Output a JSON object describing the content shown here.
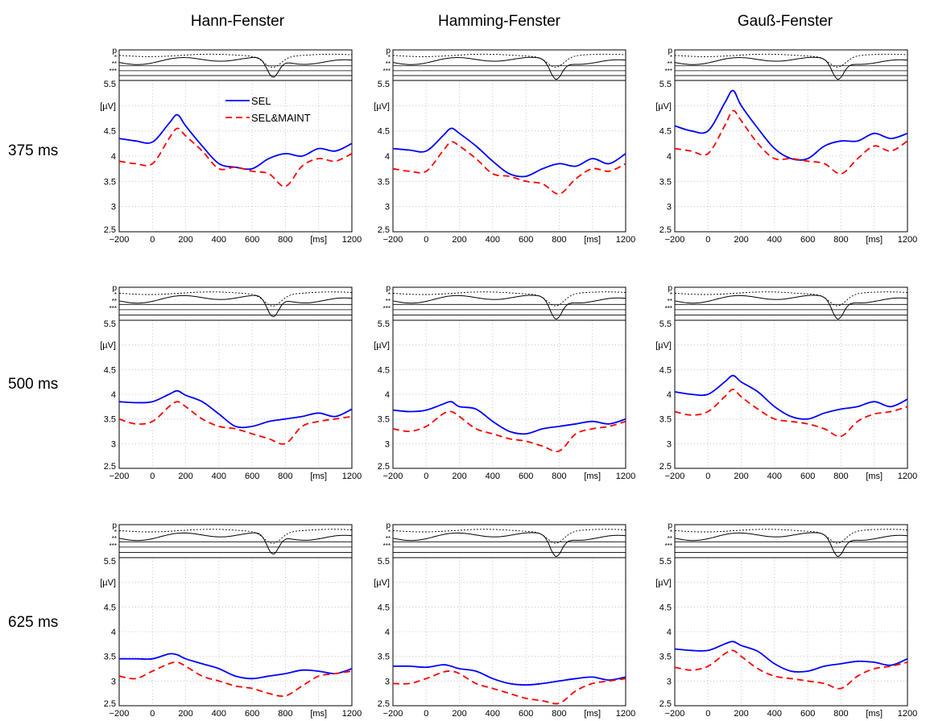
{
  "columns": [
    "Hann-Fenster",
    "Hamming-Fenster",
    "Gauß-Fenster"
  ],
  "rows": [
    "375 ms",
    "500 ms",
    "625 ms"
  ],
  "pval_labels": [
    "p",
    "*",
    "**",
    "***"
  ],
  "y_unit": "[µV]",
  "x_unit": "[ms]",
  "x_ticks": [
    "−200",
    "0",
    "200",
    "400",
    "600",
    "800",
    "1200"
  ],
  "x_tick_values": [
    -200,
    0,
    200,
    400,
    600,
    800,
    1200
  ],
  "y_ticks": [
    "2.5",
    "3",
    "3.5",
    "4",
    "4.5",
    "5",
    "5.5"
  ],
  "y_tick_values": [
    2.5,
    3,
    3.5,
    4,
    4.5,
    5,
    5.5
  ],
  "legend": [
    "SEL",
    "SEL&MAINT"
  ],
  "colors": {
    "sel": "#0000ff",
    "maint": "#ff0000",
    "axis": "#000000",
    "grid": "#bbbbbb"
  },
  "chart_data": [
    {
      "type": "line",
      "title": "Hann-Fenster",
      "row": "375 ms",
      "xlim": [
        -200,
        1200
      ],
      "ylim": [
        2.5,
        5.5
      ],
      "ylabel": "[µV]",
      "xlabel": "[ms]",
      "grid": true,
      "legend_position": "top",
      "x": [
        -200,
        -100,
        0,
        100,
        150,
        200,
        300,
        400,
        500,
        600,
        700,
        800,
        900,
        1000,
        1100,
        1200
      ],
      "series": [
        {
          "name": "SEL",
          "values": [
            4.35,
            4.3,
            4.28,
            4.65,
            4.82,
            4.6,
            4.2,
            3.85,
            3.78,
            3.75,
            3.95,
            4.05,
            4.0,
            4.15,
            4.1,
            4.25
          ]
        },
        {
          "name": "SEL&MAINT",
          "values": [
            3.9,
            3.85,
            3.85,
            4.35,
            4.55,
            4.4,
            4.1,
            3.75,
            3.78,
            3.7,
            3.65,
            3.4,
            3.8,
            3.95,
            3.9,
            4.05
          ]
        }
      ]
    },
    {
      "type": "line",
      "title": "Hamming-Fenster",
      "row": "375 ms",
      "xlim": [
        -200,
        1200
      ],
      "ylim": [
        2.5,
        5.5
      ],
      "ylabel": "[µV]",
      "xlabel": "[ms]",
      "grid": true,
      "x": [
        -200,
        -100,
        0,
        100,
        150,
        200,
        300,
        400,
        500,
        600,
        700,
        800,
        900,
        1000,
        1100,
        1200
      ],
      "series": [
        {
          "values": [
            4.15,
            4.12,
            4.1,
            4.4,
            4.55,
            4.45,
            4.2,
            3.9,
            3.65,
            3.6,
            3.75,
            3.85,
            3.8,
            3.95,
            3.85,
            4.05
          ]
        },
        {
          "values": [
            3.75,
            3.7,
            3.7,
            4.1,
            4.28,
            4.2,
            3.95,
            3.65,
            3.6,
            3.5,
            3.45,
            3.25,
            3.55,
            3.75,
            3.7,
            3.85
          ]
        }
      ]
    },
    {
      "type": "line",
      "title": "Gauß-Fenster",
      "row": "375 ms",
      "xlim": [
        -200,
        1200
      ],
      "ylim": [
        2.5,
        5.5
      ],
      "ylabel": "[µV]",
      "xlabel": "[ms]",
      "grid": true,
      "x": [
        -200,
        -100,
        0,
        100,
        150,
        200,
        300,
        400,
        500,
        600,
        700,
        800,
        900,
        1000,
        1100,
        1200
      ],
      "series": [
        {
          "values": [
            4.6,
            4.5,
            4.5,
            5.05,
            5.3,
            5.0,
            4.55,
            4.15,
            3.95,
            3.95,
            4.2,
            4.3,
            4.3,
            4.45,
            4.35,
            4.45
          ]
        },
        {
          "values": [
            4.15,
            4.1,
            4.05,
            4.6,
            4.9,
            4.7,
            4.25,
            3.95,
            3.95,
            3.9,
            3.85,
            3.65,
            3.95,
            4.2,
            4.1,
            4.3
          ]
        }
      ]
    },
    {
      "type": "line",
      "title": "Hann-Fenster",
      "row": "500 ms",
      "xlim": [
        -200,
        1200
      ],
      "ylim": [
        2.5,
        5.5
      ],
      "ylabel": "[µV]",
      "xlabel": "[ms]",
      "grid": true,
      "x": [
        -200,
        -100,
        0,
        100,
        150,
        200,
        300,
        400,
        500,
        600,
        700,
        800,
        900,
        1000,
        1100,
        1200
      ],
      "series": [
        {
          "values": [
            3.85,
            3.83,
            3.85,
            4.0,
            4.07,
            3.98,
            3.85,
            3.6,
            3.35,
            3.35,
            3.45,
            3.5,
            3.55,
            3.62,
            3.55,
            3.7
          ]
        },
        {
          "values": [
            3.5,
            3.4,
            3.45,
            3.75,
            3.85,
            3.75,
            3.5,
            3.35,
            3.3,
            3.2,
            3.1,
            3.0,
            3.35,
            3.45,
            3.5,
            3.55
          ]
        }
      ]
    },
    {
      "type": "line",
      "title": "Hamming-Fenster",
      "row": "500 ms",
      "xlim": [
        -200,
        1200
      ],
      "ylim": [
        2.5,
        5.5
      ],
      "ylabel": "[µV]",
      "xlabel": "[ms]",
      "grid": true,
      "x": [
        -200,
        -100,
        0,
        100,
        150,
        200,
        300,
        400,
        500,
        600,
        700,
        800,
        900,
        1000,
        1100,
        1200
      ],
      "series": [
        {
          "values": [
            3.68,
            3.65,
            3.68,
            3.8,
            3.85,
            3.75,
            3.7,
            3.45,
            3.25,
            3.2,
            3.3,
            3.35,
            3.4,
            3.45,
            3.4,
            3.5
          ]
        },
        {
          "values": [
            3.3,
            3.25,
            3.35,
            3.6,
            3.65,
            3.55,
            3.3,
            3.2,
            3.1,
            3.05,
            2.95,
            2.85,
            3.2,
            3.3,
            3.35,
            3.45
          ]
        }
      ]
    },
    {
      "type": "line",
      "title": "Gauß-Fenster",
      "row": "500 ms",
      "xlim": [
        -200,
        1200
      ],
      "ylim": [
        2.5,
        5.5
      ],
      "ylabel": "[µV]",
      "xlabel": "[ms]",
      "grid": true,
      "x": [
        -200,
        -100,
        0,
        100,
        150,
        200,
        300,
        400,
        500,
        600,
        700,
        800,
        900,
        1000,
        1100,
        1200
      ],
      "series": [
        {
          "values": [
            4.05,
            4.0,
            4.0,
            4.25,
            4.38,
            4.25,
            4.05,
            3.75,
            3.55,
            3.5,
            3.62,
            3.7,
            3.75,
            3.85,
            3.75,
            3.9
          ]
        },
        {
          "values": [
            3.65,
            3.58,
            3.65,
            3.95,
            4.1,
            3.95,
            3.7,
            3.5,
            3.45,
            3.4,
            3.3,
            3.15,
            3.45,
            3.6,
            3.65,
            3.75
          ]
        }
      ]
    },
    {
      "type": "line",
      "title": "Hann-Fenster",
      "row": "625 ms",
      "xlim": [
        -200,
        1200
      ],
      "ylim": [
        2.5,
        5.5
      ],
      "ylabel": "[µV]",
      "xlabel": "[ms]",
      "grid": true,
      "x": [
        -200,
        -100,
        0,
        100,
        150,
        200,
        300,
        400,
        500,
        600,
        700,
        800,
        900,
        1000,
        1100,
        1200
      ],
      "series": [
        {
          "values": [
            3.45,
            3.45,
            3.45,
            3.55,
            3.53,
            3.45,
            3.35,
            3.25,
            3.1,
            3.05,
            3.1,
            3.15,
            3.22,
            3.2,
            3.15,
            3.25
          ]
        },
        {
          "values": [
            3.1,
            3.05,
            3.2,
            3.35,
            3.38,
            3.3,
            3.1,
            3.0,
            2.9,
            2.85,
            2.75,
            2.7,
            2.9,
            3.1,
            3.15,
            3.2
          ]
        }
      ]
    },
    {
      "type": "line",
      "title": "Hamming-Fenster",
      "row": "625 ms",
      "xlim": [
        -200,
        1200
      ],
      "ylim": [
        2.5,
        5.5
      ],
      "ylabel": "[µV]",
      "xlabel": "[ms]",
      "grid": true,
      "x": [
        -200,
        -100,
        0,
        100,
        150,
        200,
        300,
        400,
        500,
        600,
        700,
        800,
        900,
        1000,
        1100,
        1200
      ],
      "series": [
        {
          "values": [
            3.3,
            3.3,
            3.28,
            3.33,
            3.3,
            3.25,
            3.2,
            3.05,
            2.95,
            2.92,
            2.95,
            3.0,
            3.05,
            3.08,
            3.02,
            3.08
          ]
        },
        {
          "values": [
            2.95,
            2.95,
            3.05,
            3.18,
            3.2,
            3.15,
            2.95,
            2.85,
            2.75,
            2.65,
            2.6,
            2.55,
            2.8,
            2.95,
            3.0,
            3.05
          ]
        }
      ]
    },
    {
      "type": "line",
      "title": "Gauß-Fenster",
      "row": "625 ms",
      "xlim": [
        -200,
        1200
      ],
      "ylim": [
        2.5,
        5.5
      ],
      "ylabel": "[µV]",
      "xlabel": "[ms]",
      "grid": true,
      "x": [
        -200,
        -100,
        0,
        100,
        150,
        200,
        300,
        400,
        500,
        600,
        700,
        800,
        900,
        1000,
        1100,
        1200
      ],
      "series": [
        {
          "values": [
            3.65,
            3.62,
            3.62,
            3.75,
            3.8,
            3.72,
            3.6,
            3.35,
            3.2,
            3.2,
            3.3,
            3.35,
            3.4,
            3.38,
            3.32,
            3.45
          ]
        },
        {
          "values": [
            3.28,
            3.22,
            3.3,
            3.55,
            3.62,
            3.5,
            3.25,
            3.1,
            3.05,
            3.0,
            2.95,
            2.85,
            3.1,
            3.25,
            3.3,
            3.38
          ]
        }
      ]
    }
  ]
}
